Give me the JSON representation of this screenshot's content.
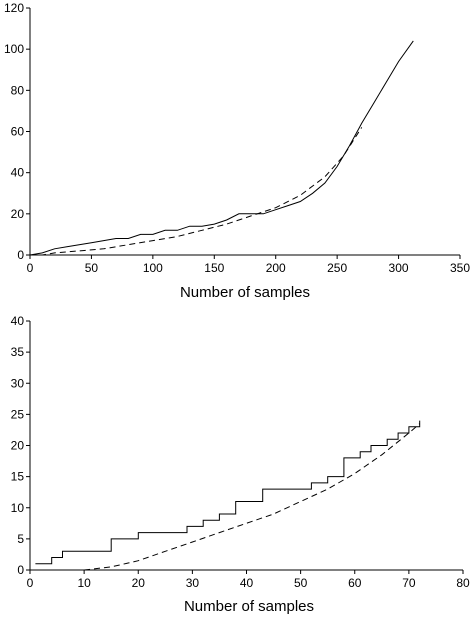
{
  "chart_data": [
    {
      "type": "line",
      "xlabel": "Number of samples",
      "ylabel": "",
      "xlim": [
        0,
        350
      ],
      "ylim": [
        0,
        120
      ],
      "xticks": [
        "0",
        "50",
        "100",
        "150",
        "200",
        "250",
        "300",
        "350"
      ],
      "yticks": [
        "0",
        "20",
        "40",
        "60",
        "80",
        "100",
        "120"
      ],
      "grid": false,
      "series": [
        {
          "style": "solid",
          "x": [
            0,
            10,
            20,
            30,
            40,
            50,
            60,
            70,
            80,
            90,
            100,
            110,
            120,
            130,
            140,
            150,
            160,
            170,
            180,
            190,
            200,
            210,
            220,
            230,
            240,
            250,
            260,
            270,
            280,
            290,
            300,
            312
          ],
          "y": [
            0,
            1,
            3,
            4,
            5,
            6,
            7,
            8,
            8,
            10,
            10,
            12,
            12,
            14,
            14,
            15,
            17,
            20,
            20,
            20,
            22,
            24,
            26,
            30,
            35,
            43,
            53,
            64,
            74,
            84,
            94,
            104
          ]
        },
        {
          "style": "dashed",
          "x": [
            0,
            10,
            20,
            40,
            60,
            80,
            100,
            120,
            140,
            160,
            180,
            200,
            220,
            240,
            255,
            270
          ],
          "y": [
            0,
            0,
            1,
            2,
            3,
            5,
            7,
            9,
            12,
            15,
            19,
            23,
            29,
            38,
            48,
            62
          ]
        }
      ]
    },
    {
      "type": "line",
      "xlabel": "Number of samples",
      "ylabel": "",
      "xlim": [
        0,
        80
      ],
      "ylim": [
        0,
        40
      ],
      "xticks": [
        "0",
        "10",
        "20",
        "30",
        "40",
        "50",
        "60",
        "70",
        "80"
      ],
      "yticks": [
        "0",
        "5",
        "10",
        "15",
        "20",
        "25",
        "30",
        "35",
        "40"
      ],
      "grid": false,
      "series": [
        {
          "style": "solid",
          "step": true,
          "x": [
            1,
            4,
            6,
            8,
            15,
            20,
            26,
            29,
            32,
            35,
            38,
            43,
            48,
            52,
            55,
            58,
            61,
            63,
            66,
            68,
            70,
            72
          ],
          "y": [
            1,
            2,
            3,
            3,
            5,
            6,
            6,
            7,
            8,
            9,
            11,
            13,
            13,
            14,
            15,
            18,
            19,
            20,
            21,
            22,
            23,
            24
          ]
        },
        {
          "style": "dashed",
          "x": [
            10,
            15,
            20,
            25,
            30,
            35,
            40,
            45,
            50,
            55,
            60,
            65,
            70,
            72
          ],
          "y": [
            0,
            0.5,
            1.5,
            3,
            4.5,
            6,
            7.5,
            9,
            11,
            13,
            15.5,
            18.5,
            22,
            23.5
          ]
        }
      ]
    }
  ]
}
